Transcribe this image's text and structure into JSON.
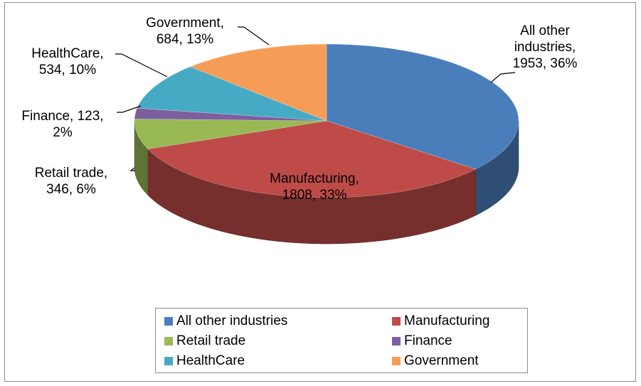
{
  "chart_data": {
    "type": "pie",
    "style": "3d",
    "slices": [
      {
        "label": "All other industries",
        "value": 1953,
        "percent": "36%",
        "color": "#4a7ebb",
        "data_label": [
          "All other",
          "industries,",
          "1953, 36%"
        ]
      },
      {
        "label": "Manufacturing",
        "value": 1808,
        "percent": "33%",
        "color": "#be4b48",
        "data_label": [
          "Manufacturing,",
          "1808, 33%"
        ]
      },
      {
        "label": "Retail trade",
        "value": 346,
        "percent": "6%",
        "color": "#98b954",
        "data_label": [
          "Retail trade,",
          "346, 6%"
        ]
      },
      {
        "label": "Finance",
        "value": 123,
        "percent": "2%",
        "color": "#7d5fa0",
        "data_label": [
          "Finance, 123,",
          "2%"
        ]
      },
      {
        "label": "HealthCare",
        "value": 534,
        "percent": "10%",
        "color": "#46aac5",
        "data_label": [
          "HealthCare,",
          "534, 10%"
        ]
      },
      {
        "label": "Government",
        "value": 684,
        "percent": "13%",
        "color": "#f59d56",
        "data_label": [
          "Government,",
          "684, 13%"
        ]
      }
    ],
    "legend": {
      "placement": "bottom",
      "items": [
        "All other industries",
        "Manufacturing",
        "Retail trade",
        "Finance",
        "HealthCare",
        "Government"
      ]
    }
  }
}
